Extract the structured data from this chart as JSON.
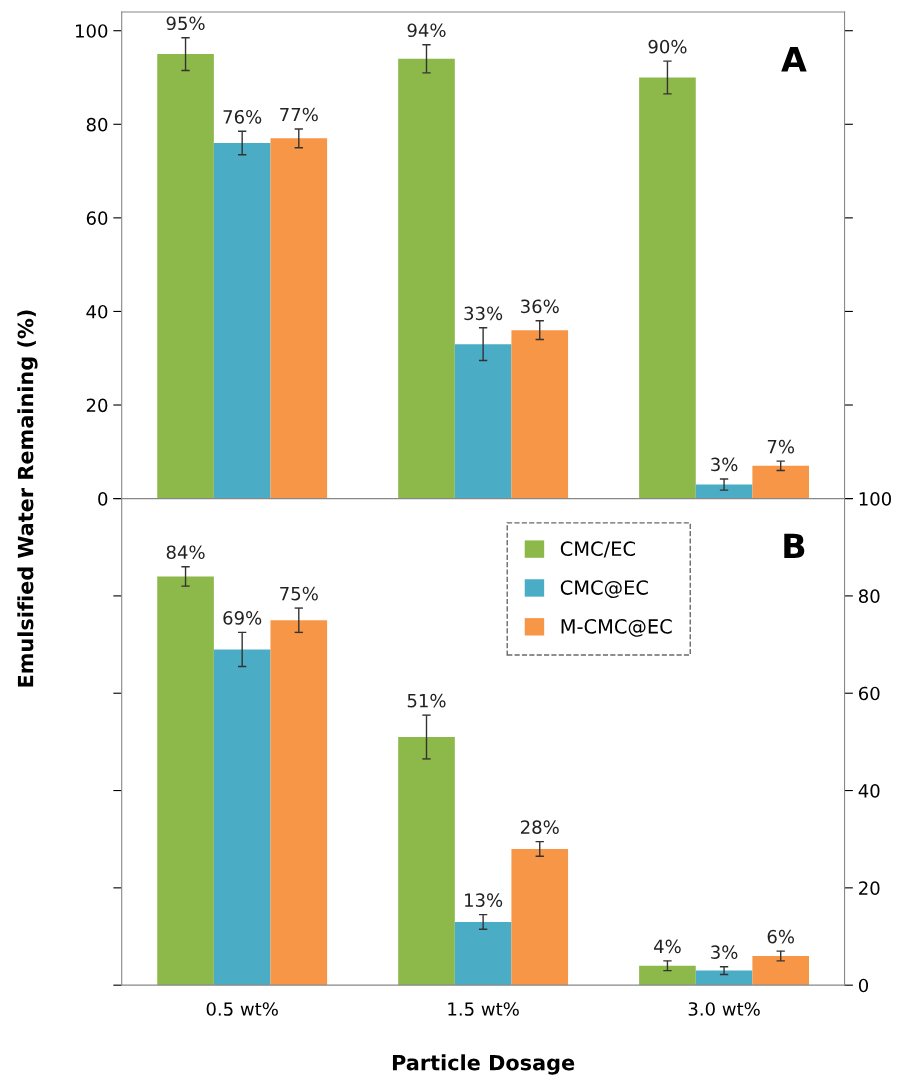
{
  "chart_data": [
    {
      "type": "bar",
      "ylabel": "Emulsified Water Remaining (%)",
      "categories": [
        null,
        null,
        null
      ],
      "ylim": [
        0,
        104
      ],
      "yticks": [
        0,
        20,
        40,
        60,
        80,
        100
      ],
      "tick_labels": "y",
      "annotations": [
        "A"
      ],
      "series": [
        {
          "color": "#8db84a",
          "values": [
            95,
            94,
            90
          ],
          "errors": [
            3.5,
            3,
            3.5
          ],
          "value_labels": [
            "95%",
            "94%",
            "90%"
          ]
        },
        {
          "color": "#4bacc6",
          "values": [
            76,
            33,
            3
          ],
          "errors": [
            2.5,
            3.5,
            1.2
          ],
          "value_labels": [
            "76%",
            "33%",
            "3%"
          ]
        },
        {
          "color": "#f79646",
          "values": [
            77,
            36,
            7
          ],
          "errors": [
            2,
            2,
            1
          ],
          "value_labels": [
            "77%",
            "36%",
            "7%"
          ]
        }
      ]
    },
    {
      "type": "bar",
      "xlabel": "Particle Dosage",
      "categories": [
        "0.5 wt%",
        "1.5 wt%",
        "3.0 wt%"
      ],
      "ylim": [
        0,
        100
      ],
      "yticks": [
        0,
        20,
        40,
        60,
        80,
        100
      ],
      "legend": "top right",
      "annotations": [
        "B"
      ],
      "series": [
        {
          "name": "CMC/EC",
          "color": "#8db84a",
          "values": [
            84,
            51,
            4
          ],
          "errors": [
            2,
            4.5,
            1
          ],
          "value_labels": [
            "84%",
            "51%",
            "4%"
          ]
        },
        {
          "name": "CMC@EC",
          "color": "#4bacc6",
          "values": [
            69,
            13,
            3
          ],
          "errors": [
            3.5,
            1.5,
            0.8
          ],
          "value_labels": [
            "69%",
            "13%",
            "3%"
          ]
        },
        {
          "name": "M-CMC@EC",
          "color": "#f79646",
          "values": [
            75,
            28,
            6
          ],
          "errors": [
            2.5,
            1.5,
            1
          ],
          "value_labels": [
            "75%",
            "28%",
            "6%"
          ]
        }
      ]
    }
  ]
}
